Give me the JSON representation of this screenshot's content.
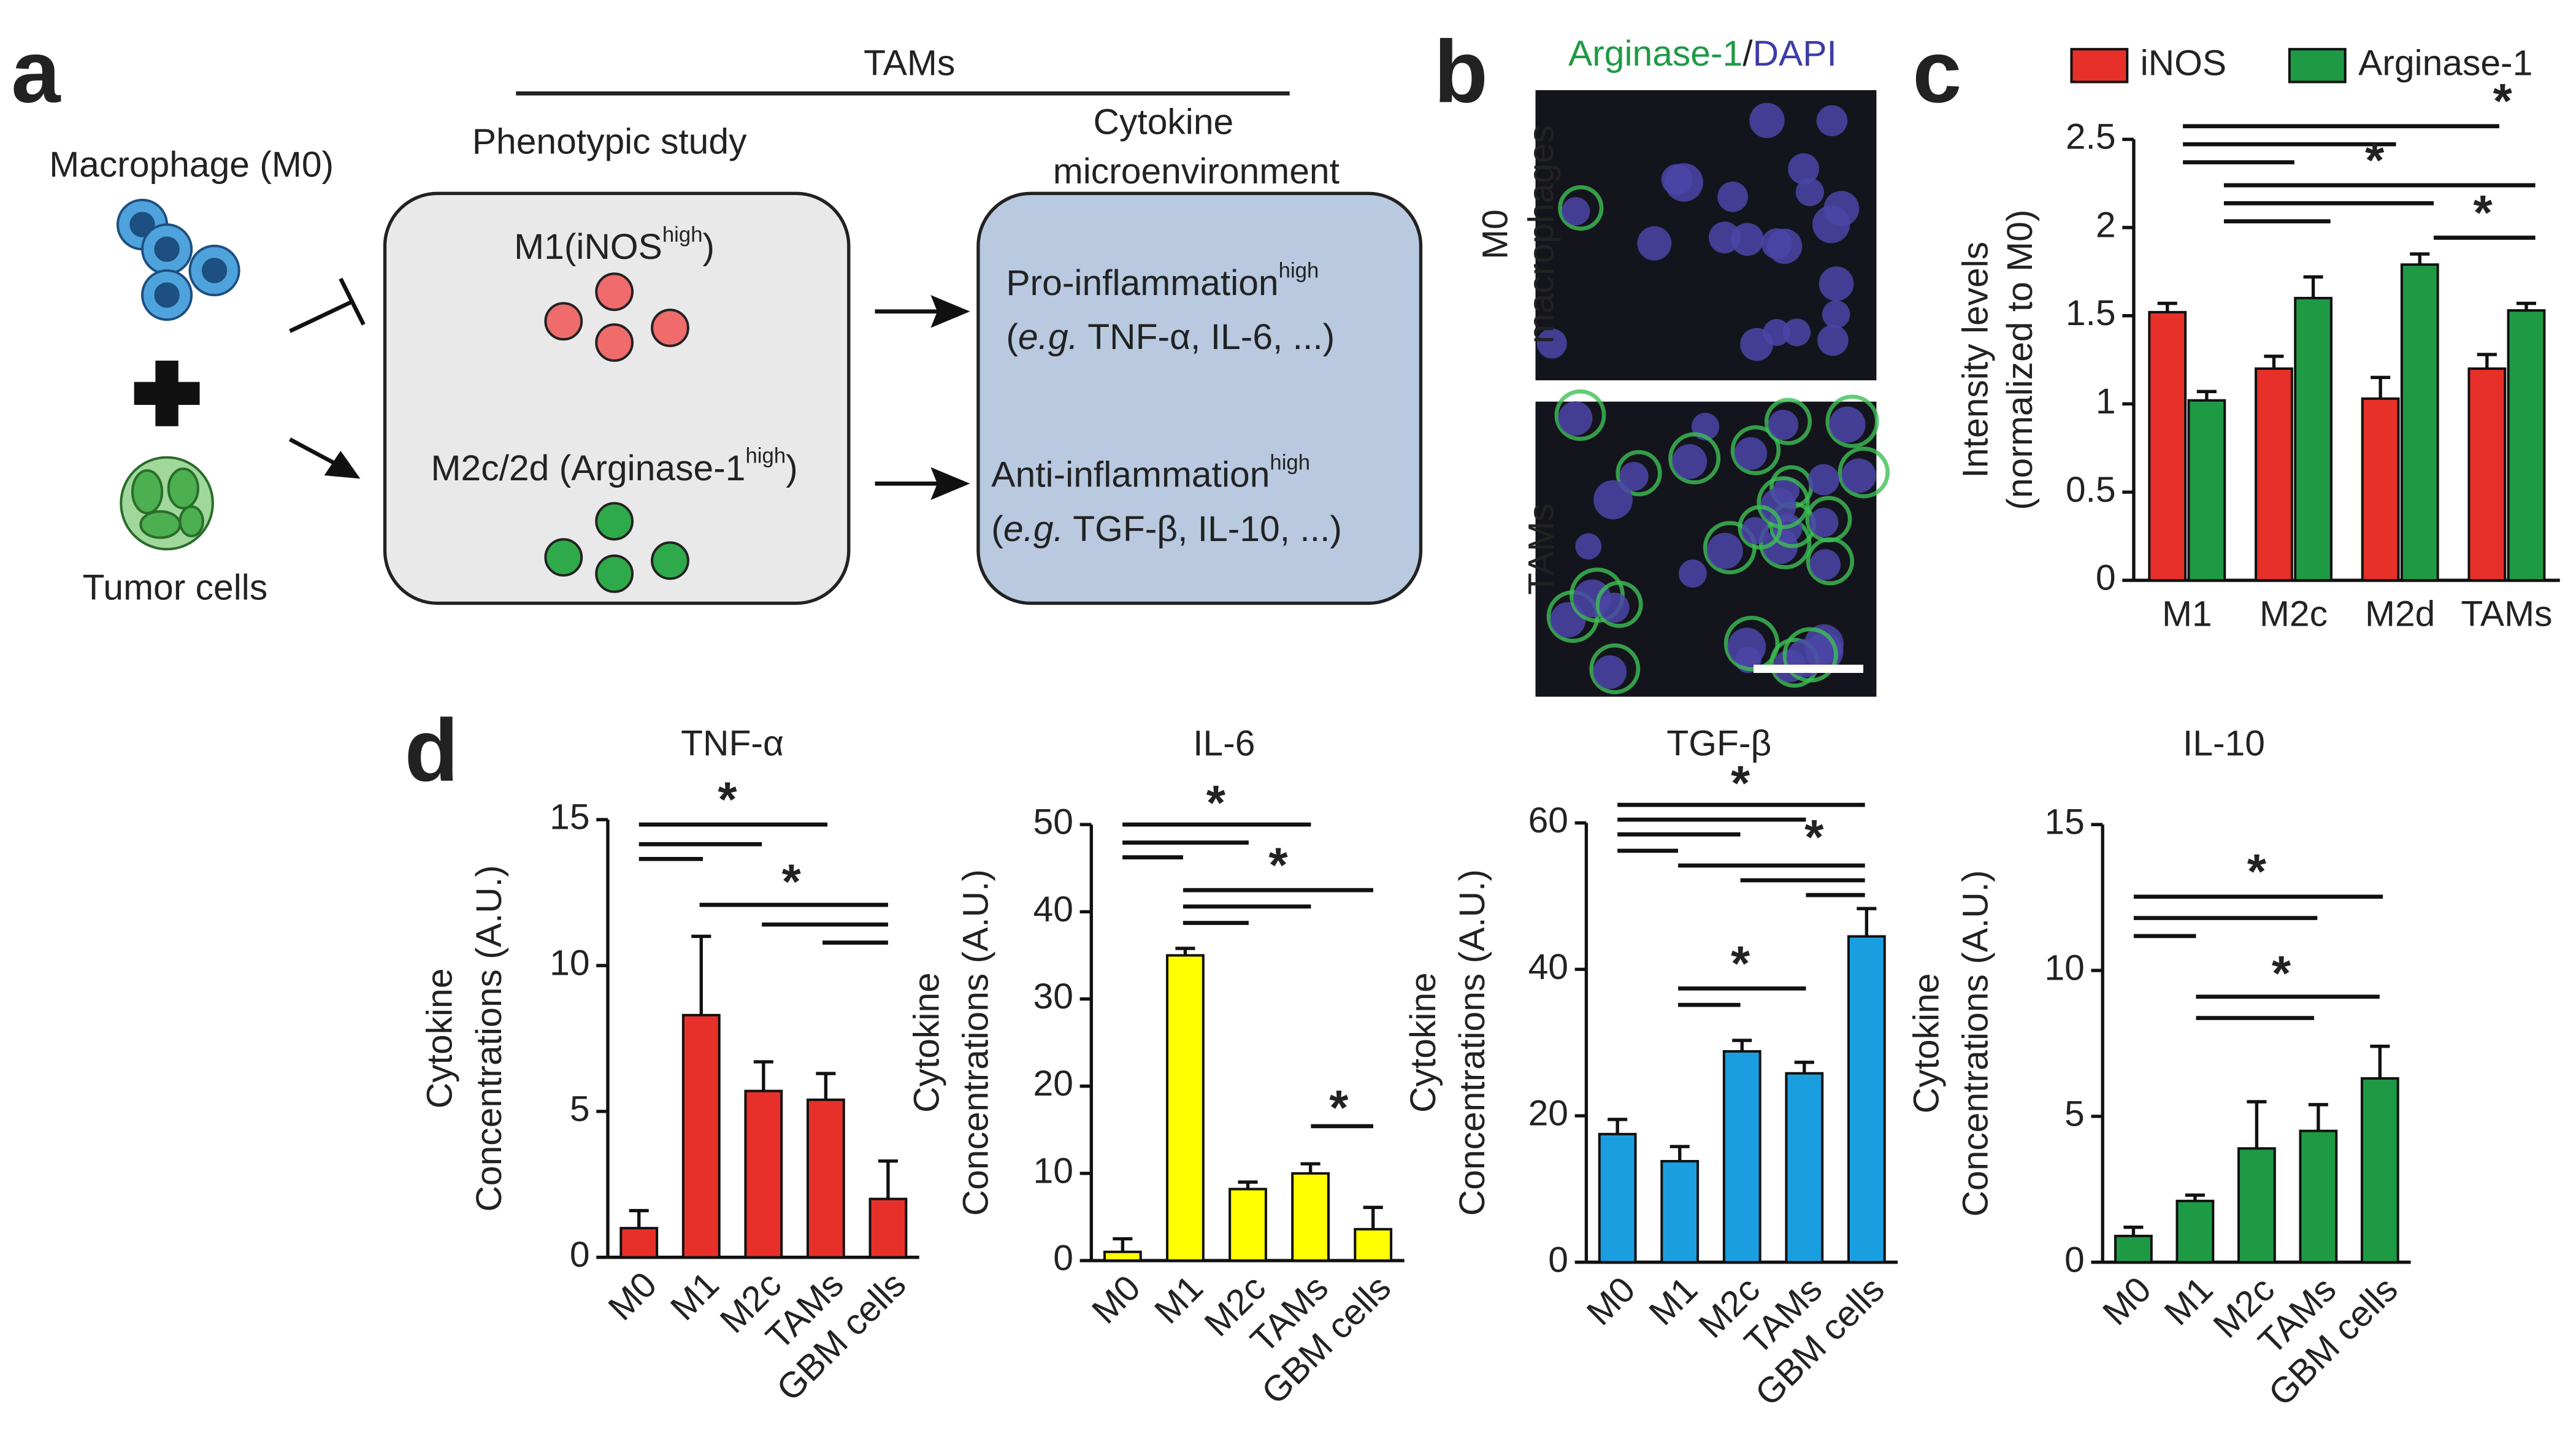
{
  "panel_labels": [
    "a",
    "b",
    "c",
    "d"
  ],
  "diagram": {
    "header": "TAMs",
    "input_top": "Macrophage (M0)",
    "input_bottom": "Tumor cells",
    "left_box_title": "Phenotypic study",
    "right_box_title": [
      "Cytokine",
      "microenvironment"
    ],
    "m1": {
      "text": "M1(iNOS",
      "sup": "high",
      "end": ")"
    },
    "m2": {
      "text": "M2c/2d (Arginase-1",
      "sup": "high",
      "end": ")"
    },
    "pro": {
      "text": "Pro-inflammation",
      "sup": "high",
      "example": [
        "(",
        "e.g.",
        " TNF-α, IL-6, ...)"
      ]
    },
    "anti": {
      "text": "Anti-inflammation",
      "sup": "high",
      "example": [
        "(",
        "e.g.",
        " TGF-β, IL-10, ...)"
      ]
    }
  },
  "micrograph": {
    "title": [
      "Arginase-1",
      "/",
      "DAPI"
    ],
    "rows": [
      [
        "M0",
        "macrophages"
      ],
      [
        "TAMs"
      ]
    ]
  },
  "chart_data": [
    {
      "type": "bar",
      "y_label": [
        "Intensity levels",
        "(normalized to M0)"
      ],
      "categories": [
        "M1",
        "M2c",
        "M2d",
        "TAMs"
      ],
      "series": [
        {
          "name": "iNOS",
          "color": "#e8302a",
          "values": [
            1.52,
            1.2,
            1.03,
            1.2
          ],
          "errors": [
            0.05,
            0.07,
            0.12,
            0.08
          ]
        },
        {
          "name": "Arginase-1",
          "color": "#1e9a45",
          "values": [
            1.02,
            1.6,
            1.79,
            1.53
          ],
          "errors": [
            0.05,
            0.12,
            0.06,
            0.04
          ]
        }
      ],
      "ylim": [
        0,
        2.5
      ],
      "yticks": [
        0,
        0.5,
        1,
        1.5,
        2,
        2.5
      ],
      "legend": "top",
      "annotations": [
        "*",
        "*",
        "*"
      ]
    },
    {
      "type": "bar",
      "title": "TNF-α",
      "y_label": [
        "Cytokine",
        "Concentrations (A.U.)"
      ],
      "categories": [
        "M0",
        "M1",
        "M2c",
        "TAMs",
        "GBM cells"
      ],
      "values": [
        1.0,
        8.3,
        5.7,
        5.4,
        2.0
      ],
      "errors": [
        0.6,
        2.7,
        1.0,
        0.9,
        1.3
      ],
      "color": "#e8302a",
      "ylim": [
        0,
        15
      ],
      "yticks": [
        0,
        5,
        10,
        15
      ],
      "annotations": [
        "*",
        "*"
      ]
    },
    {
      "type": "bar",
      "title": "IL-6",
      "y_label": [
        "Cytokine",
        "Concentrations (A.U.)"
      ],
      "categories": [
        "M0",
        "M1",
        "M2c",
        "TAMs",
        "GBM cells"
      ],
      "values": [
        1.0,
        35,
        8.2,
        10,
        3.6
      ],
      "errors": [
        1.5,
        0.8,
        0.8,
        1.1,
        2.5
      ],
      "color": "#ffff00",
      "ylim": [
        0,
        50
      ],
      "yticks": [
        0,
        10,
        20,
        30,
        40,
        50
      ],
      "annotations": [
        "*",
        "*",
        "*"
      ]
    },
    {
      "type": "bar",
      "title": "TGF-β",
      "y_label": [
        "Cytokine",
        "Concentrations (A.U.)"
      ],
      "categories": [
        "M0",
        "M1",
        "M2c",
        "TAMs",
        "GBM cells"
      ],
      "values": [
        17.5,
        13.8,
        28.8,
        25.8,
        44.5
      ],
      "errors": [
        2,
        2,
        1.5,
        1.5,
        3.8
      ],
      "color": "#1b9ee0",
      "ylim": [
        0,
        60
      ],
      "yticks": [
        0,
        20,
        40,
        60
      ],
      "annotations": [
        "*",
        "*",
        "*"
      ]
    },
    {
      "type": "bar",
      "title": "IL-10",
      "y_label": [
        "Cytokine",
        "Concentrations (A.U.)"
      ],
      "categories": [
        "M0",
        "M1",
        "M2c",
        "TAMs",
        "GBM cells"
      ],
      "values": [
        0.9,
        2.1,
        3.9,
        4.5,
        6.3
      ],
      "errors": [
        0.3,
        0.2,
        1.6,
        0.9,
        1.1
      ],
      "color": "#1e9a45",
      "ylim": [
        0,
        15
      ],
      "yticks": [
        0,
        5,
        10,
        15
      ],
      "annotations": [
        "*",
        "*"
      ]
    }
  ]
}
